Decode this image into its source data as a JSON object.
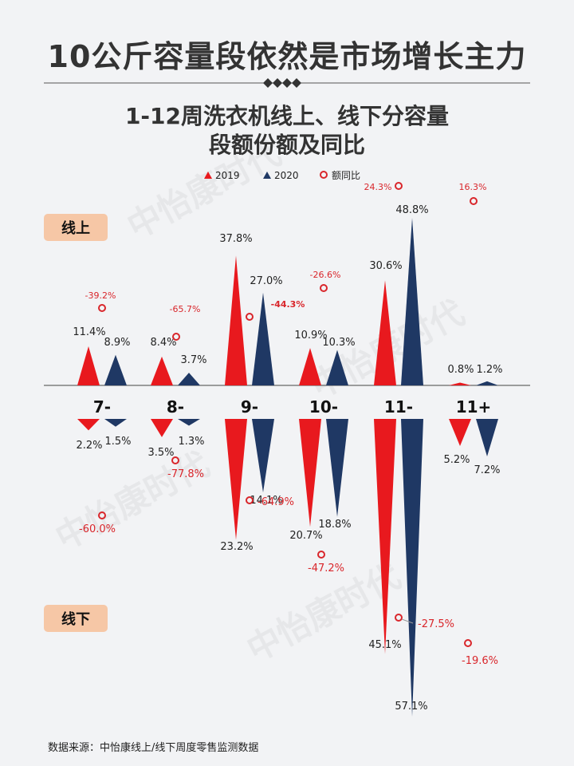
{
  "title": "10公斤容量段依然是市场增长主力",
  "subtitle_line1": "1-12周洗衣机线上、线下分容量",
  "subtitle_line2": "段额份额及同比",
  "source": "数据来源：中怡康线上/线下周度零售监测数据",
  "watermark": "中怡康时代",
  "legend": {
    "s2019": "2019",
    "s2020": "2020",
    "yoy": "额同比"
  },
  "tags": {
    "online": "线上",
    "offline": "线下"
  },
  "colors": {
    "s2019": "#e8191e",
    "s2020": "#1f3864",
    "yoy": "#d9262b",
    "tag": "#f6c7a6"
  },
  "chart_data": {
    "type": "bar",
    "categories": [
      "7-",
      "8-",
      "9-",
      "10-",
      "11-",
      "11+"
    ],
    "series": [
      {
        "name": "2019",
        "channel": "线上",
        "values": [
          11.4,
          8.4,
          37.8,
          10.9,
          30.6,
          0.8
        ]
      },
      {
        "name": "2020",
        "channel": "线上",
        "values": [
          8.9,
          3.7,
          27.0,
          10.3,
          48.8,
          1.2
        ]
      },
      {
        "name": "2019",
        "channel": "线下",
        "values": [
          2.2,
          3.5,
          23.2,
          20.7,
          45.1,
          5.2
        ]
      },
      {
        "name": "2020",
        "channel": "线下",
        "values": [
          1.5,
          1.3,
          14.1,
          18.8,
          57.1,
          7.2
        ]
      }
    ],
    "yoy": {
      "online": [
        -39.2,
        -65.7,
        -44.3,
        -26.6,
        24.3,
        16.3
      ],
      "offline": [
        -60.0,
        -77.8,
        -64.9,
        -47.2,
        -27.5,
        -19.6
      ]
    },
    "labels": {
      "online_2019": [
        "11.4%",
        "8.4%",
        "37.8%",
        "10.9%",
        "30.6%",
        "0.8%"
      ],
      "online_2020": [
        "8.9%",
        "3.7%",
        "27.0%",
        "10.3%",
        "48.8%",
        "1.2%"
      ],
      "offline_2019": [
        "2.2%",
        "3.5%",
        "23.2%",
        "20.7%",
        "45.1%",
        "5.2%"
      ],
      "offline_2020": [
        "1.5%",
        "1.3%",
        "14.1%",
        "18.8%",
        "57.1%",
        "7.2%"
      ],
      "online_yoy": [
        "-39.2%",
        "-65.7%",
        "-44.3%",
        "-26.6%",
        "24.3%",
        "16.3%"
      ],
      "offline_yoy": [
        "-60.0%",
        "-77.8%",
        "-64.9%",
        "-47.2%",
        "-27.5%",
        "-19.6%"
      ]
    },
    "unit": "%"
  }
}
